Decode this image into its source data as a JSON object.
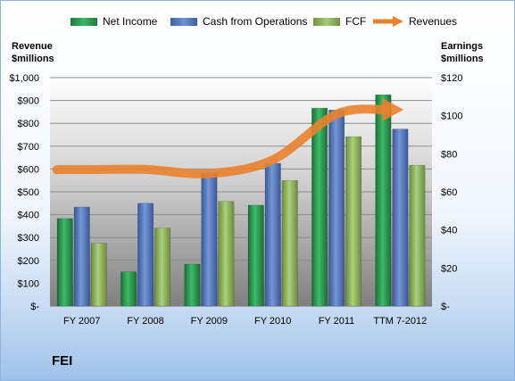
{
  "company": "FEI",
  "chart_data": {
    "type": "bar",
    "categories": [
      "FY 2007",
      "FY 2008",
      "FY 2009",
      "FY 2010",
      "FY 2011",
      "TTM 7-2012"
    ],
    "series": [
      {
        "name": "Net Income",
        "axis": "right",
        "values": [
          46,
          18,
          22,
          53,
          104,
          111
        ],
        "color": "#2e9a52"
      },
      {
        "name": "Cash from Operations",
        "axis": "right",
        "values": [
          52,
          54,
          70,
          75,
          103,
          93
        ],
        "color": "#5a7bbf"
      },
      {
        "name": "FCF",
        "axis": "right",
        "values": [
          33,
          41,
          55,
          66,
          89,
          74
        ],
        "color": "#97b966"
      },
      {
        "name": "Revenues",
        "axis": "left",
        "type": "line",
        "values": [
          597,
          598,
          580,
          640,
          840,
          860
        ],
        "color": "#e9822e"
      }
    ],
    "left_axis": {
      "title_line1": "Revenue",
      "title_line2": "$millions",
      "ylim": [
        0,
        1000
      ],
      "ticks": [
        "$-",
        "$100",
        "$200",
        "$300",
        "$400",
        "$500",
        "$600",
        "$700",
        "$800",
        "$900",
        "$1,000"
      ]
    },
    "right_axis": {
      "title_line1": "Earnings",
      "title_line2": "$millions",
      "ylim": [
        0,
        120
      ],
      "ticks": [
        "$-",
        "$20",
        "$40",
        "$60",
        "$80",
        "$100",
        "$120"
      ]
    },
    "legend_position": "top",
    "grid": true
  }
}
